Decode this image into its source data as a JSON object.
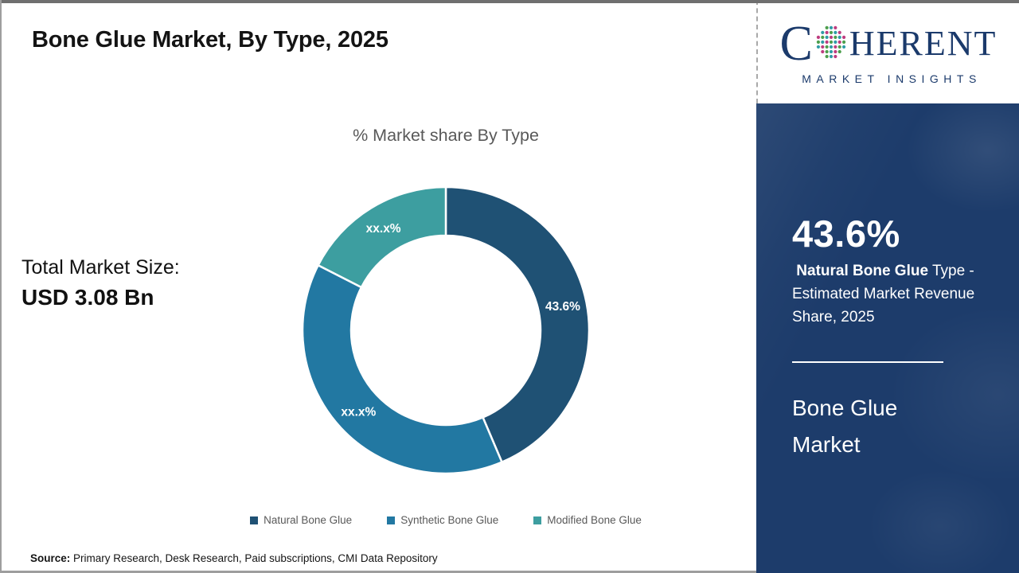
{
  "header": {
    "title": "Bone Glue Market, By Type, 2025"
  },
  "total_market": {
    "label": "Total Market Size:",
    "value": "USD 3.08 Bn"
  },
  "chart_data": {
    "type": "pie",
    "subtype": "donut",
    "title": "% Market share By Type",
    "categories": [
      "Natural Bone Glue",
      "Synthetic Bone Glue",
      "Modified Bone Glue"
    ],
    "values": [
      43.6,
      38.9,
      17.5
    ],
    "value_labels": [
      "43.6%",
      "xx.x%",
      "xx.x%"
    ],
    "colors": [
      "#1f5174",
      "#2278a2",
      "#3d9ea0"
    ],
    "label_color": "#ffffff",
    "start_angle_deg": 0,
    "direction": "clockwise",
    "inner_radius_ratio": 0.66,
    "legend_position": "bottom"
  },
  "source": {
    "label": "Source:",
    "text": " Primary Research, Desk Research, Paid subscriptions, CMI Data Repository"
  },
  "sidebar": {
    "logo": {
      "letter_c": "C",
      "word_rest": "HERENT",
      "tagline": "MARKET INSIGHTS",
      "globe_icon": "dotted-globe-icon"
    },
    "stat_value": "43.6%",
    "stat_bold": " Natural Bone Glue",
    "stat_rest": " Type - Estimated Market Revenue Share, 2025",
    "panel_title": "Bone Glue Market",
    "panel_bg": "#1d3c6b",
    "logo_color": "#1b3a6b"
  }
}
